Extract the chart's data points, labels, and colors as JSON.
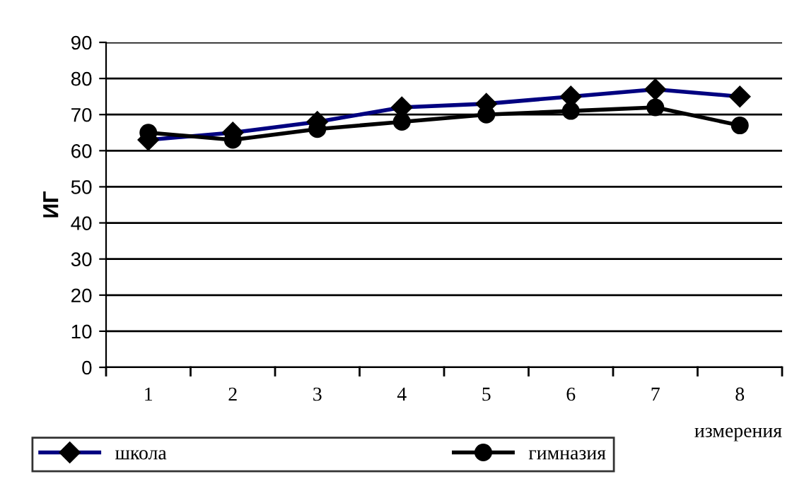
{
  "chart_data": {
    "type": "line",
    "ylabel": "ИГ",
    "xlabel": "измерения",
    "categories": [
      "1",
      "2",
      "3",
      "4",
      "5",
      "6",
      "7",
      "8"
    ],
    "series": [
      {
        "name": "школа",
        "color": "#000080",
        "marker": "diamond",
        "values": [
          63,
          65,
          68,
          72,
          73,
          75,
          77,
          75
        ]
      },
      {
        "name": "гимназия",
        "color": "#000000",
        "marker": "circle",
        "values": [
          65,
          63,
          66,
          68,
          70,
          71,
          72,
          67
        ]
      }
    ],
    "ylim": [
      0,
      90
    ],
    "yticks": [
      0,
      10,
      20,
      30,
      40,
      50,
      60,
      70,
      80,
      90
    ],
    "grid": "y",
    "legend": "bottom left",
    "line_style": "solid"
  }
}
